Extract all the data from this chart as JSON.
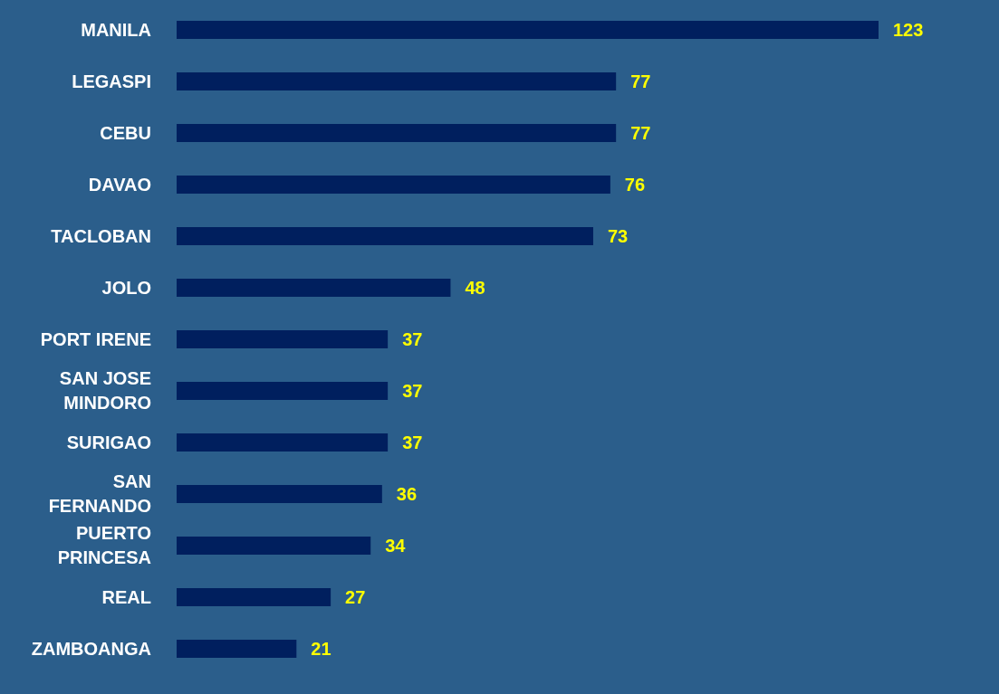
{
  "chart_data": {
    "type": "bar",
    "orientation": "horizontal",
    "categories": [
      "MANILA",
      "LEGASPI",
      "CEBU",
      "DAVAO",
      "TACLOBAN",
      "JOLO",
      "PORT IRENE",
      "SAN JOSE MINDORO",
      "SURIGAO",
      "SAN FERNANDO",
      "PUERTO PRINCESA",
      "REAL",
      "ZAMBOANGA"
    ],
    "values": [
      123,
      77,
      77,
      76,
      73,
      48,
      37,
      37,
      37,
      36,
      34,
      27,
      21
    ],
    "color": "#001f5e",
    "data_labels": true,
    "grid": false,
    "legend": false
  }
}
